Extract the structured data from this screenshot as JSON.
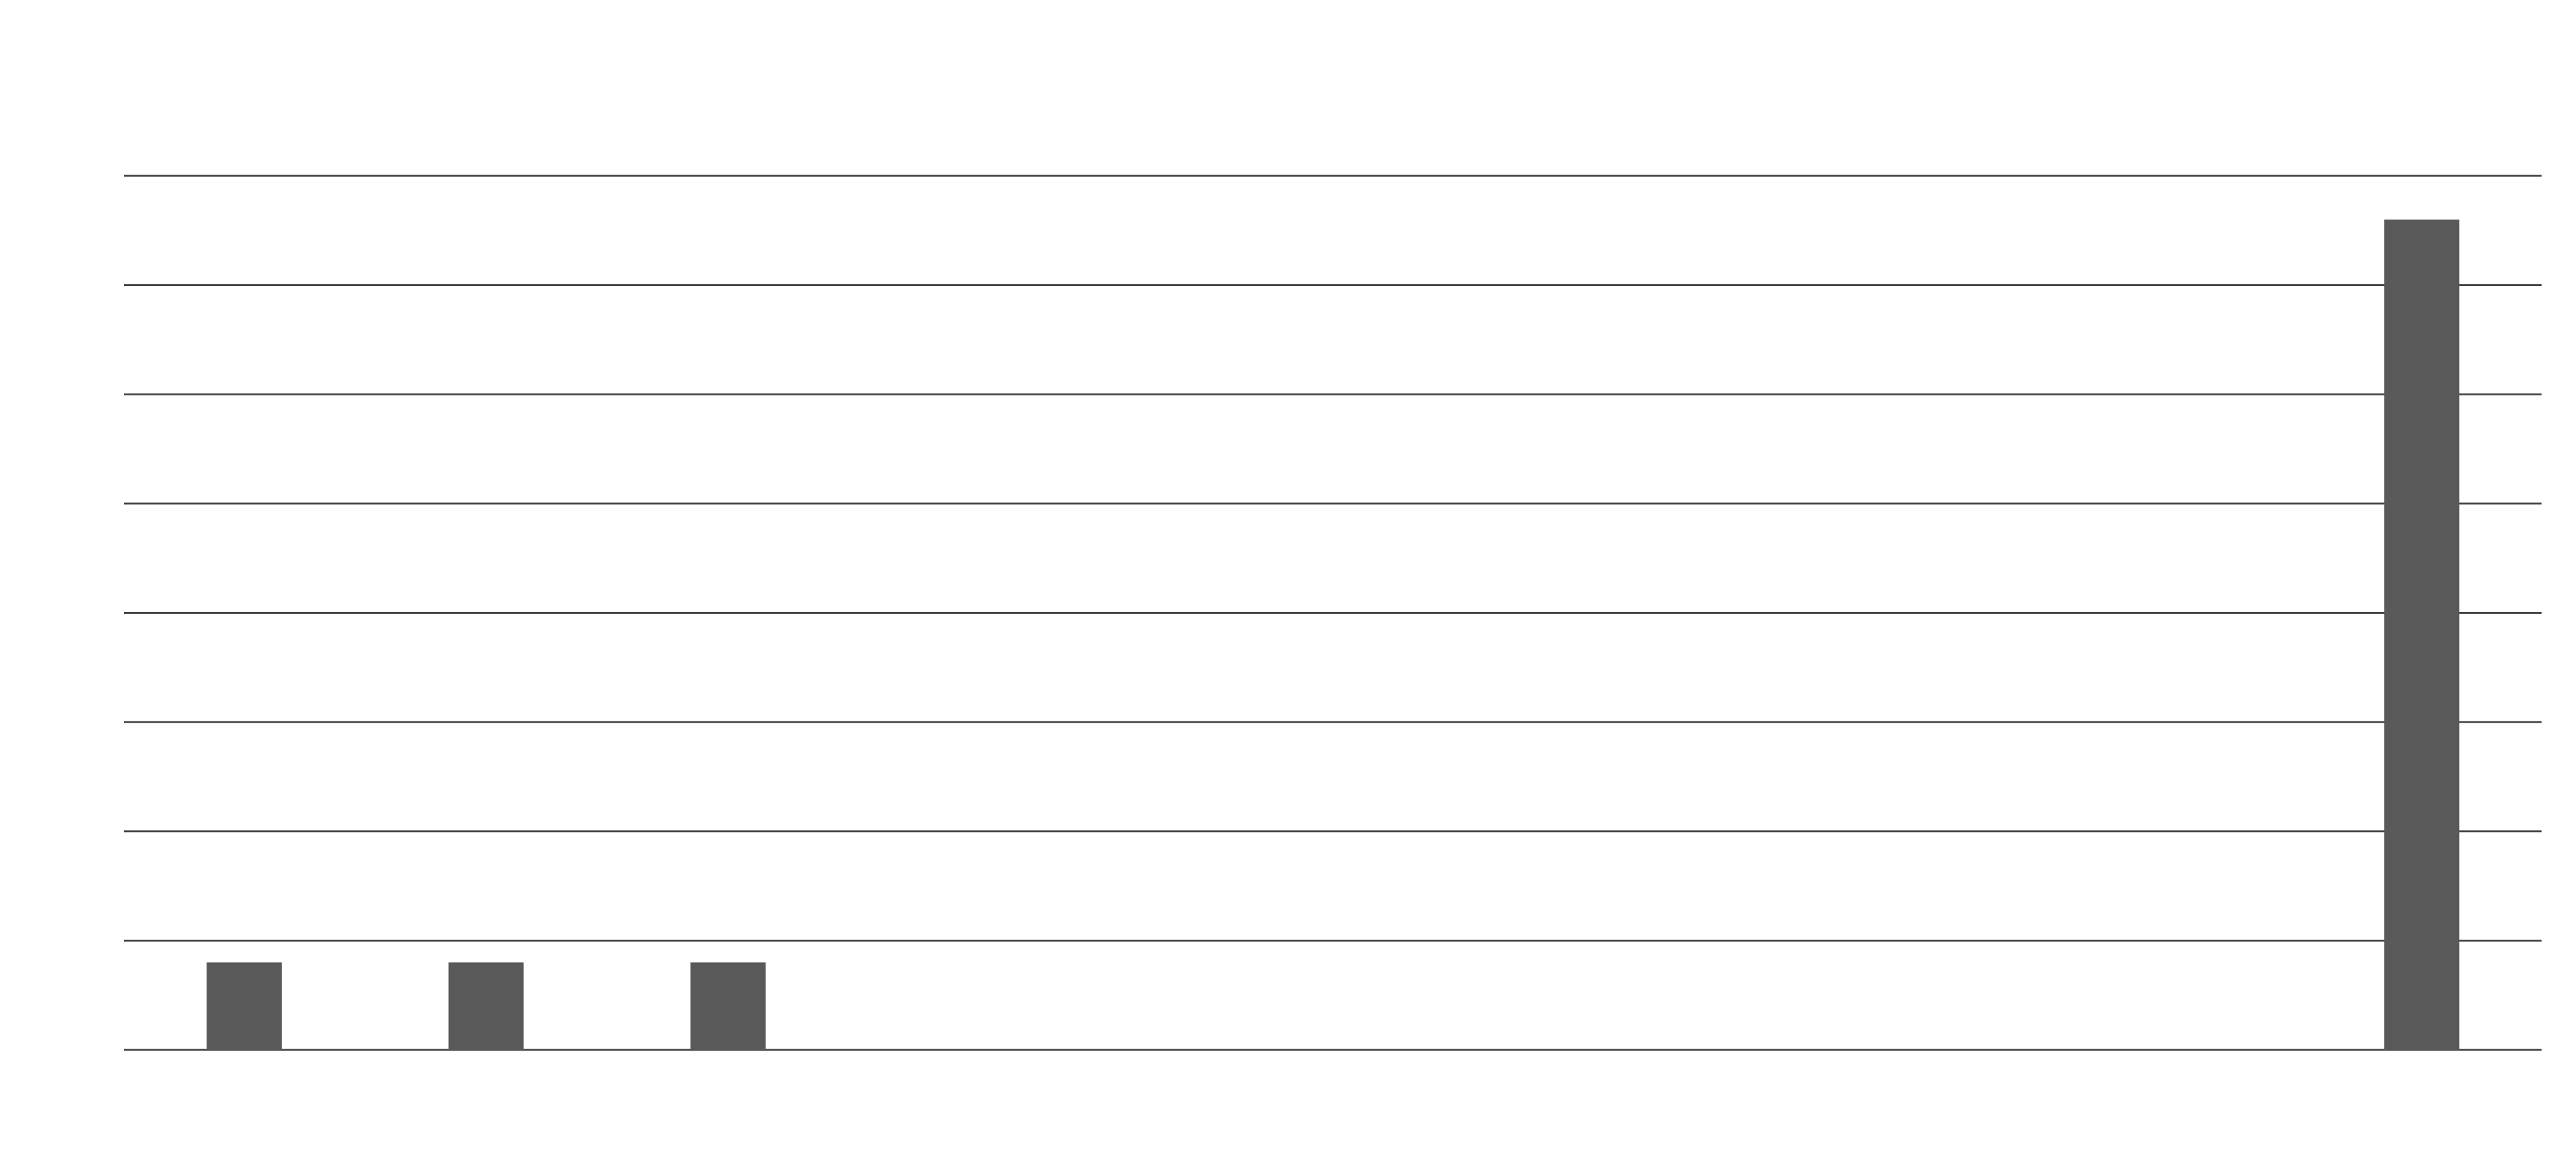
{
  "chart_data": {
    "type": "bar",
    "categories": [
      "",
      "",
      "",
      "",
      "",
      "",
      "",
      "",
      "",
      ""
    ],
    "values": [
      0.8,
      0.8,
      0.8,
      0,
      0,
      0,
      0,
      0,
      0,
      7.6
    ],
    "ylim": [
      0,
      8
    ],
    "grid": true,
    "title": "",
    "xlabel": "",
    "ylabel": "",
    "colors": {
      "bar": "#595959",
      "gridline": "#444444",
      "background": "#ffffff"
    }
  }
}
